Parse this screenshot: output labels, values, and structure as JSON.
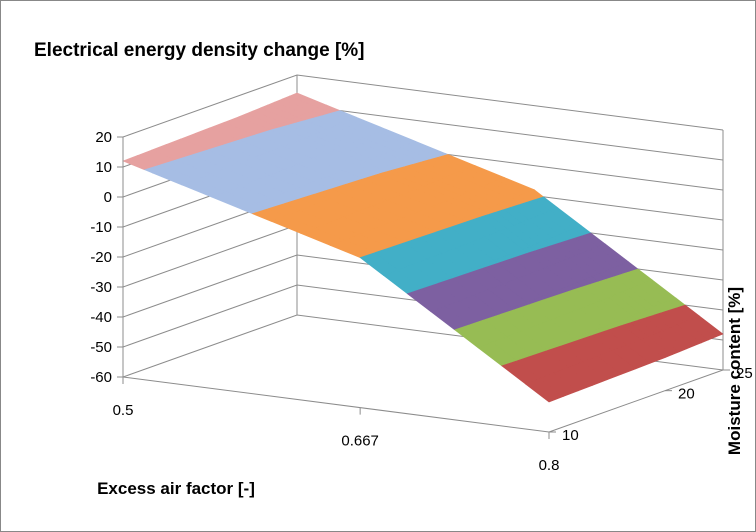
{
  "chart_data": {
    "type": "surface",
    "title": "Electrical energy density change [%]",
    "xlabel": "Excess air factor [-]",
    "ylabel": "Moisture content [%]",
    "zlabel": "",
    "x_ticks": [
      "0.5",
      "0.667",
      "0.8"
    ],
    "y_ticks": [
      "10",
      "20",
      "25"
    ],
    "z_ticks": [
      "20",
      "10",
      "0",
      "-10",
      "-20",
      "-30",
      "-40",
      "-50",
      "-60"
    ],
    "x": [
      0.5,
      0.667,
      0.8
    ],
    "y": [
      10,
      20,
      25
    ],
    "zlim": [
      -60,
      20
    ],
    "surface_z": [
      [
        12,
        -10,
        -50
      ],
      [
        13,
        -9,
        -49
      ],
      [
        14,
        -8,
        -48
      ]
    ],
    "color_bands": [
      {
        "range": [
          10,
          20
        ],
        "color": "#E6A1A0"
      },
      {
        "range": [
          0,
          10
        ],
        "color": "#A6BDE4"
      },
      {
        "range": [
          -10,
          0
        ],
        "color": "#F59A4A"
      },
      {
        "range": [
          -20,
          -10
        ],
        "color": "#42AFC7"
      },
      {
        "range": [
          -30,
          -20
        ],
        "color": "#7D60A1"
      },
      {
        "range": [
          -40,
          -30
        ],
        "color": "#97BC54"
      },
      {
        "range": [
          -50,
          -40
        ],
        "color": "#C14E4C"
      },
      {
        "range": [
          -60,
          -50
        ],
        "color": "#4A7EBB"
      }
    ],
    "grid": true,
    "legend": "none"
  }
}
